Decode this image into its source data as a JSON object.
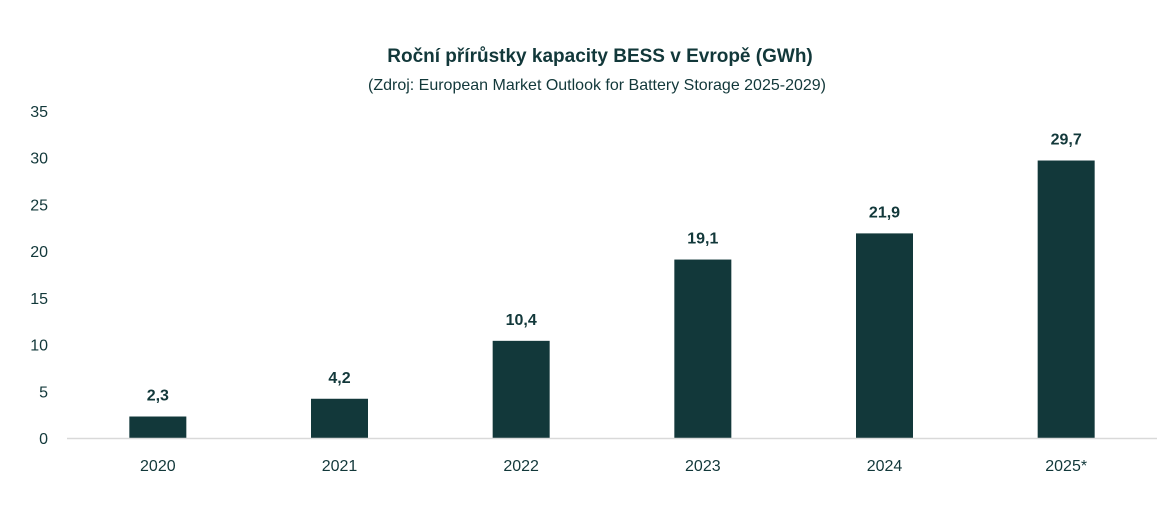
{
  "chart_data": {
    "type": "bar",
    "title": "Roční přírůstky kapacity BESS v Evropě (GWh)",
    "subtitle": "(Zdroj: European Market Outlook for Battery Storage 2025-2029)",
    "categories": [
      "2020",
      "2021",
      "2022",
      "2023",
      "2024",
      "2025*"
    ],
    "values": [
      2.3,
      4.2,
      10.4,
      19.1,
      21.9,
      29.7
    ],
    "data_labels": [
      "2,3",
      "4,2",
      "10,4",
      "19,1",
      "21,9",
      "29,7"
    ],
    "xlabel": "",
    "ylabel": "",
    "ylim": [
      0,
      35
    ],
    "yticks": [
      0,
      5,
      10,
      15,
      20,
      25,
      30,
      35
    ],
    "ytick_labels": [
      "0",
      "5",
      "10",
      "15",
      "20",
      "25",
      "30",
      "35"
    ],
    "grid": false,
    "legend": "none",
    "bar_color": "#12383a",
    "axis_color": "#d9d9d9"
  }
}
